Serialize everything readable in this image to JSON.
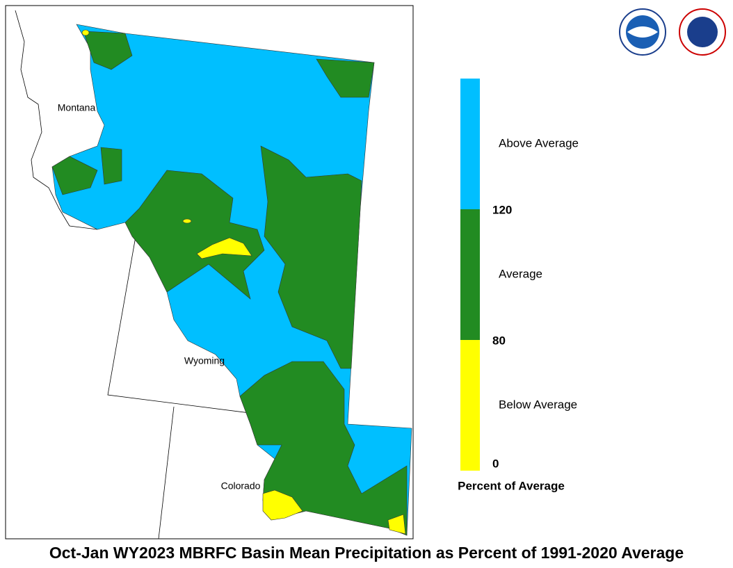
{
  "map": {
    "states": [
      "Montana",
      "Wyoming",
      "Colorado"
    ]
  },
  "legend": {
    "title": "Percent of Average",
    "bins": [
      {
        "label": "Below Average",
        "color": "#ffff00"
      },
      {
        "label": "Average",
        "color": "#228b22"
      },
      {
        "label": "Above Average",
        "color": "#00bfff"
      }
    ],
    "breaks": [
      0,
      80,
      120
    ]
  },
  "title": "Oct-Jan WY2023 MBRFC Basin Mean Precipitation as Percent of 1991-2020 Average"
}
